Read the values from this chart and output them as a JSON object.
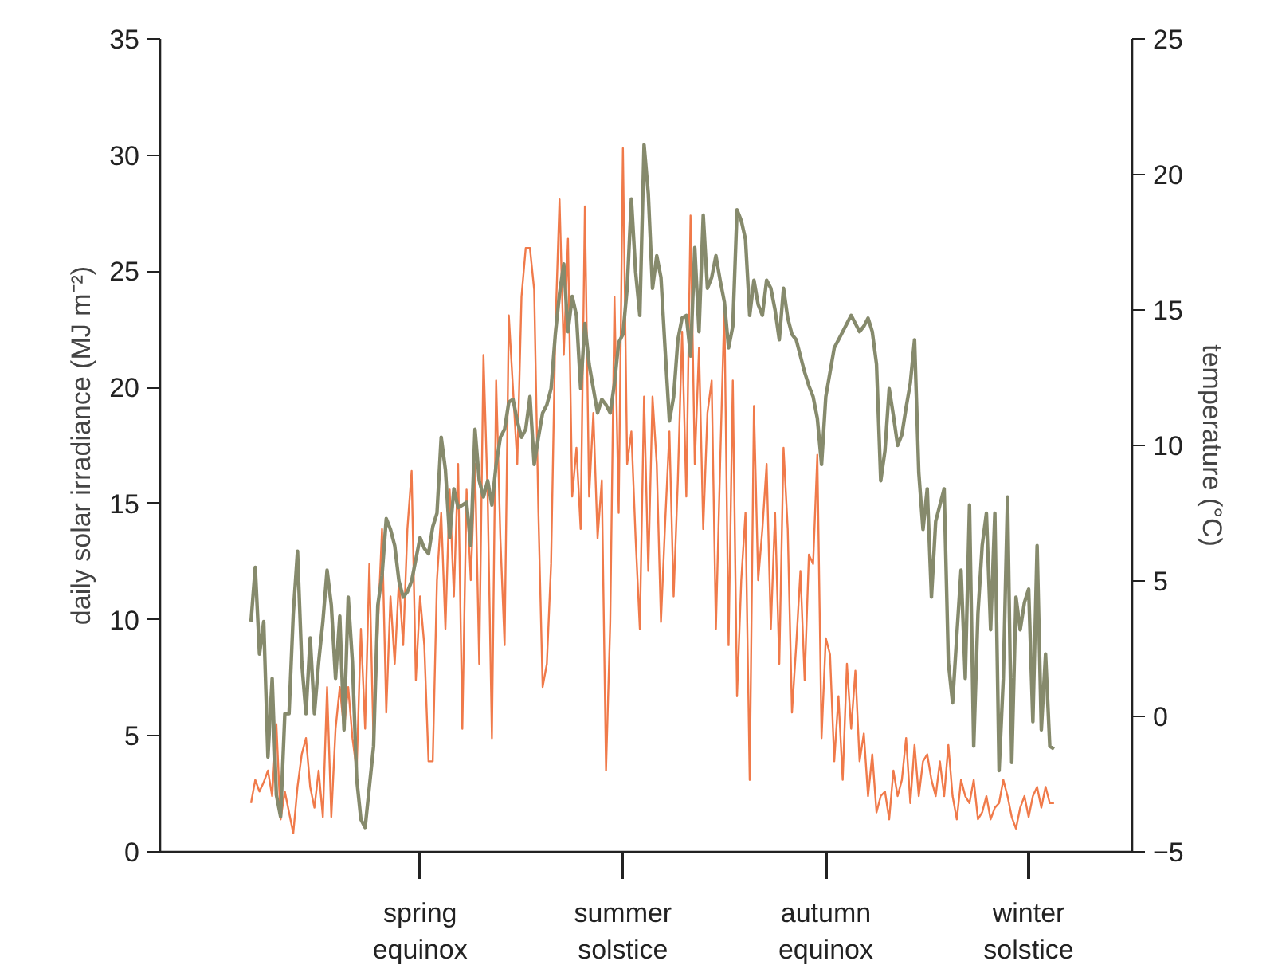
{
  "chart_data": {
    "type": "line",
    "ylabel": "daily solar irradiance (MJ m⁻²)",
    "y2label": "temperature (°C)",
    "categories": [
      null,
      null,
      null,
      null,
      null,
      null,
      null,
      null,
      null,
      null,
      null,
      null,
      null,
      null,
      null,
      null,
      null,
      null,
      null,
      null,
      null,
      null,
      null,
      null,
      null,
      null,
      null,
      null,
      null,
      null,
      null,
      null,
      null,
      null,
      null,
      null,
      null,
      null,
      null,
      null,
      "spring\nequinox",
      null,
      null,
      null,
      null,
      null,
      null,
      null,
      null,
      null,
      null,
      null,
      null,
      null,
      null,
      null,
      null,
      null,
      null,
      null,
      null,
      null,
      null,
      null,
      null,
      null,
      null,
      null,
      null,
      null,
      null,
      null,
      null,
      null,
      null,
      null,
      null,
      null,
      null,
      null,
      null,
      null,
      null,
      null,
      null,
      null,
      null,
      null,
      "summer\nsolstice",
      null,
      null,
      null,
      null,
      null,
      null,
      null,
      null,
      null,
      null,
      null,
      null,
      null,
      null,
      null,
      null,
      null,
      null,
      null,
      null,
      null,
      null,
      null,
      null,
      null,
      null,
      null,
      null,
      null,
      null,
      null,
      null,
      null,
      null,
      null,
      null,
      null,
      null,
      null,
      null,
      null,
      null,
      null,
      null,
      null,
      null,
      null,
      "autumn\nequinox",
      null,
      null,
      null,
      null,
      null,
      null,
      null,
      null,
      null,
      null,
      null,
      null,
      null,
      null,
      null,
      null,
      null,
      null,
      null,
      null,
      null,
      null,
      null,
      null,
      null,
      null,
      null,
      null,
      null,
      null,
      null,
      null,
      null,
      null,
      null,
      null,
      null,
      null,
      null,
      null,
      null,
      null,
      null,
      null,
      null,
      null,
      null,
      "winter\nsolstice",
      null,
      null,
      null,
      null,
      null,
      null
    ],
    "ylim": [
      0,
      35
    ],
    "yticks": [
      0,
      5,
      10,
      15,
      20,
      25,
      30,
      35
    ],
    "y2lim": [
      -5,
      25
    ],
    "y2ticks": [
      -5,
      0,
      5,
      10,
      15,
      20,
      25
    ],
    "series": [
      {
        "color": "#f07a4a",
        "values": [
          2.1,
          3.1,
          2.6,
          3.0,
          3.5,
          2.4,
          5.5,
          1.4,
          2.6,
          1.7,
          0.8,
          2.8,
          4.2,
          4.9,
          2.8,
          1.9,
          3.5,
          1.5,
          7.1,
          1.5,
          5.3,
          7.1,
          5.3,
          7.1,
          4.9,
          3.5,
          9.6,
          5.3,
          12.4,
          4.6,
          9.6,
          13.9,
          6.0,
          11.0,
          8.1,
          11.7,
          8.9,
          13.9,
          16.4,
          7.4,
          11.0,
          8.9,
          3.9,
          3.9,
          11.7,
          14.6,
          9.6,
          15.6,
          11.0,
          16.7,
          5.3,
          15.6,
          11.7,
          16.7,
          8.1,
          21.4,
          15.3,
          4.9,
          20.3,
          13.5,
          8.9,
          23.1,
          19.9,
          16.7,
          23.9,
          26.0,
          26.0,
          24.2,
          14.6,
          7.1,
          8.1,
          12.4,
          22.4,
          28.1,
          21.4,
          26.4,
          15.3,
          17.4,
          13.9,
          27.8,
          15.3,
          18.9,
          13.5,
          16.0,
          3.5,
          9.9,
          23.9,
          14.6,
          30.3,
          16.7,
          18.1,
          13.5,
          9.6,
          19.6,
          12.1,
          19.6,
          16.7,
          9.9,
          14.2,
          18.1,
          11.0,
          16.0,
          22.4,
          15.3,
          27.4,
          16.7,
          21.7,
          13.9,
          18.9,
          20.3,
          9.6,
          16.7,
          23.5,
          8.9,
          20.3,
          6.7,
          11.7,
          14.6,
          3.1,
          19.2,
          11.7,
          13.9,
          16.7,
          9.6,
          14.6,
          8.1,
          17.4,
          13.9,
          6.0,
          8.9,
          12.1,
          7.4,
          12.8,
          12.4,
          17.1,
          4.9,
          9.2,
          8.5,
          3.9,
          6.7,
          3.1,
          8.1,
          5.3,
          7.8,
          3.9,
          5.1,
          2.4,
          4.2,
          1.7,
          2.4,
          2.6,
          1.4,
          3.5,
          2.4,
          3.1,
          4.9,
          2.1,
          4.6,
          2.4,
          3.9,
          4.2,
          3.1,
          2.4,
          3.9,
          2.4,
          4.6,
          2.4,
          1.4,
          3.1,
          2.4,
          2.1,
          3.1,
          1.4,
          1.7,
          2.4,
          1.4,
          1.9,
          2.1,
          3.1,
          2.4,
          1.5,
          1.0,
          1.9,
          2.4,
          1.5,
          2.4,
          2.8,
          1.9,
          2.8,
          2.1,
          2.1
        ]
      },
      {
        "color": "#868a6c",
        "axis": "y2",
        "values": [
          3.5,
          5.5,
          2.3,
          3.5,
          -1.5,
          1.4,
          -2.9,
          -3.7,
          0.1,
          0.1,
          3.8,
          6.1,
          2.0,
          0.1,
          2.9,
          0.1,
          2.0,
          3.5,
          5.4,
          4.1,
          1.4,
          3.7,
          -0.5,
          4.4,
          2.0,
          -2.3,
          -3.8,
          -4.1,
          -2.6,
          -1.1,
          4.1,
          5.2,
          7.3,
          6.9,
          6.3,
          5.0,
          4.4,
          4.6,
          5.0,
          5.8,
          6.6,
          6.2,
          6.0,
          7.0,
          7.5,
          10.3,
          9.1,
          6.6,
          8.4,
          7.7,
          7.8,
          7.9,
          6.3,
          10.6,
          8.7,
          8.1,
          8.7,
          7.8,
          9.3,
          10.3,
          10.6,
          11.6,
          11.7,
          10.9,
          10.3,
          10.6,
          11.8,
          9.3,
          10.3,
          11.2,
          11.5,
          12.1,
          14.1,
          15.6,
          16.7,
          14.2,
          15.5,
          14.8,
          12.1,
          14.5,
          13.0,
          12.1,
          11.2,
          11.7,
          11.5,
          11.2,
          12.3,
          13.8,
          14.1,
          15.8,
          19.1,
          16.4,
          14.8,
          21.1,
          19.3,
          15.8,
          17.0,
          16.2,
          13.5,
          10.9,
          11.8,
          13.9,
          14.7,
          14.8,
          13.3,
          17.3,
          14.2,
          18.5,
          15.8,
          16.2,
          17.0,
          16.1,
          15.3,
          13.6,
          14.4,
          18.7,
          18.3,
          17.6,
          14.8,
          16.1,
          15.2,
          14.8,
          16.1,
          15.8,
          15.0,
          13.9,
          15.8,
          14.7,
          14.1,
          13.9,
          13.3,
          12.7,
          12.2,
          11.8,
          11.0,
          9.3,
          11.8,
          12.7,
          13.6,
          13.9,
          14.2,
          14.5,
          14.8,
          14.5,
          14.2,
          14.4,
          14.7,
          14.2,
          13.0,
          8.7,
          9.8,
          12.1,
          11.1,
          10.0,
          10.4,
          11.4,
          12.3,
          13.9,
          9.0,
          6.9,
          8.4,
          4.4,
          7.2,
          7.8,
          8.4,
          2.0,
          0.5,
          3.0,
          5.4,
          1.4,
          7.8,
          -1.1,
          3.8,
          6.3,
          7.5,
          3.2,
          7.5,
          -2.0,
          1.4,
          8.1,
          -1.7,
          4.4,
          3.2,
          4.2,
          4.7,
          -0.2,
          6.3,
          -0.5,
          2.3,
          -1.1,
          -1.2
        ]
      }
    ]
  }
}
